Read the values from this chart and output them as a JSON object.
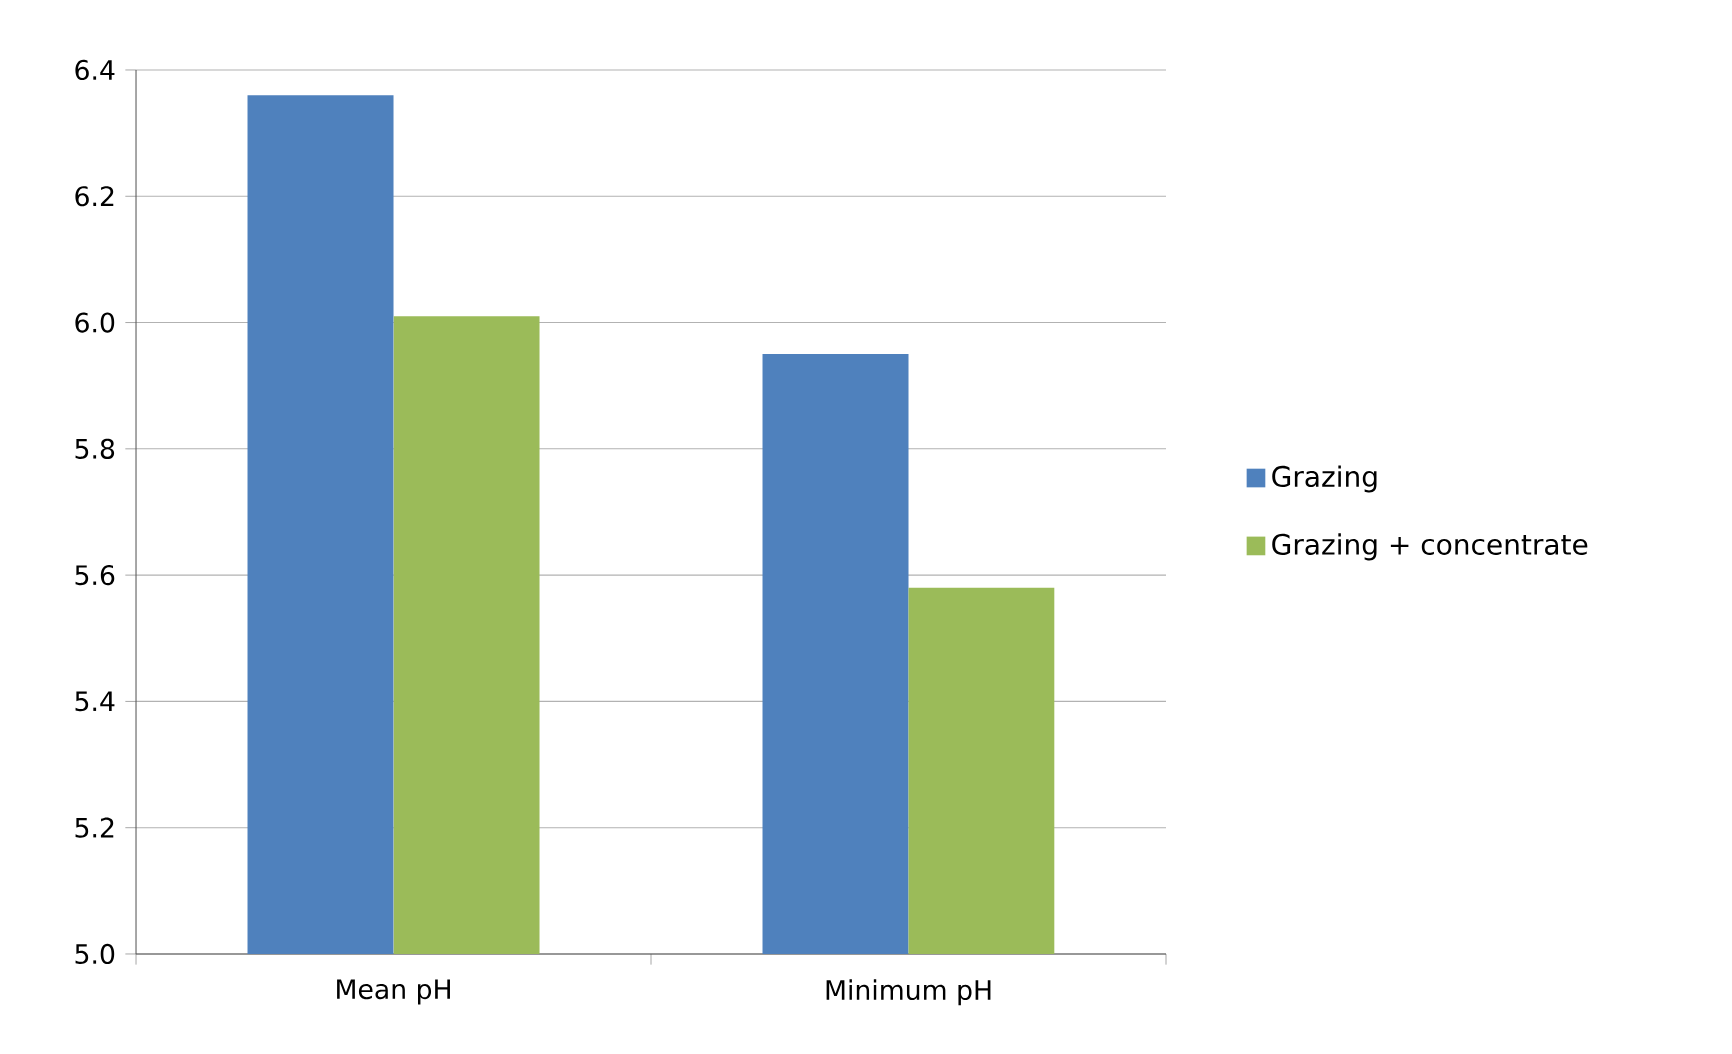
{
  "chart_data": {
    "type": "bar",
    "categories": [
      "Mean pH",
      "Minimum pH"
    ],
    "series": [
      {
        "name": "Grazing",
        "color": "#4f81bd",
        "values": [
          6.36,
          5.95
        ]
      },
      {
        "name": "Grazing + concentrate",
        "color": "#9bbb59",
        "values": [
          6.01,
          5.58
        ]
      }
    ],
    "ylim": [
      5.0,
      6.4
    ],
    "yticks": [
      {
        "value": 5.0,
        "label": "5.0"
      },
      5.2,
      5.4,
      5.6,
      5.8,
      {
        "value": 6.0,
        "label": "6.0"
      },
      6.2,
      6.4
    ],
    "grid": "y",
    "legend": "right"
  }
}
